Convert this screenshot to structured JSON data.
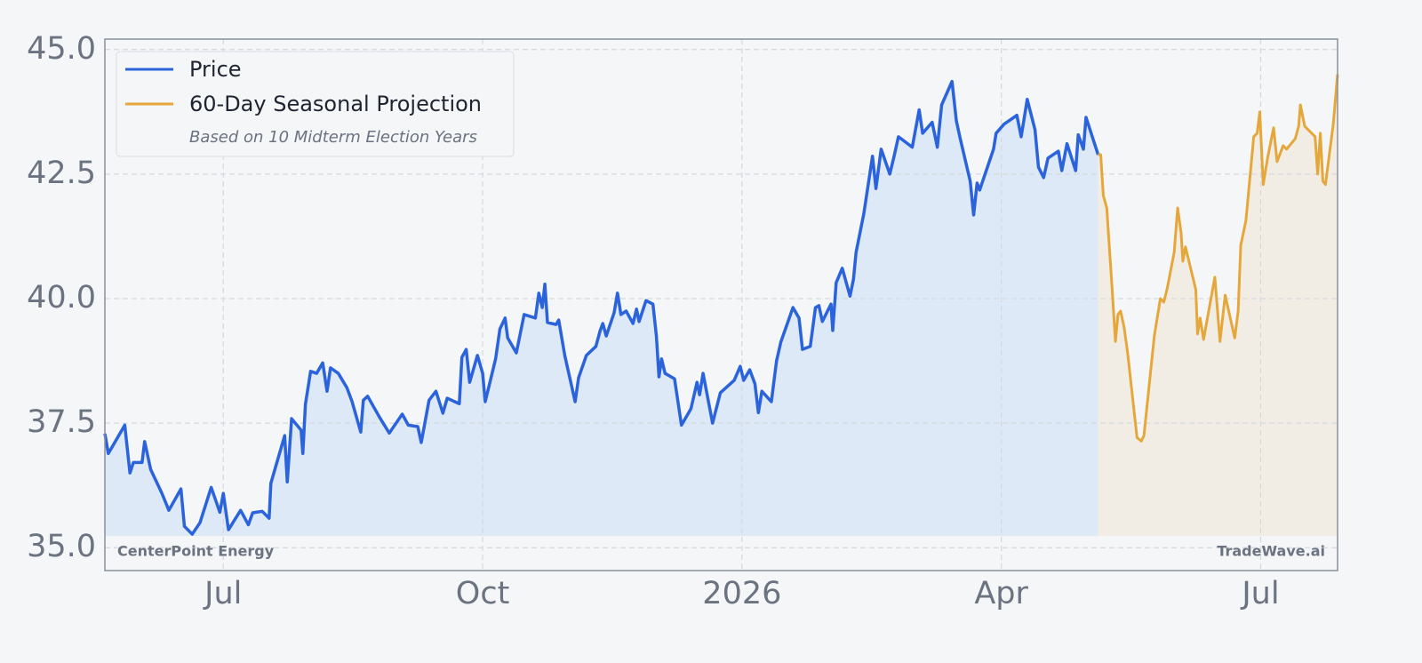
{
  "chart_data": {
    "type": "line",
    "xlim": [
      -1.37,
      12.89
    ],
    "xticks": [
      {
        "value": 0,
        "label": "Jul"
      },
      {
        "value": 3,
        "label": "Oct"
      },
      {
        "value": 6,
        "label": "2026"
      },
      {
        "value": 9,
        "label": "Apr"
      },
      {
        "value": 12,
        "label": "Jul"
      }
    ],
    "ylim": [
      34.54,
      45.21
    ],
    "yticks": [
      {
        "value": 35,
        "label": "35.0"
      },
      37.5,
      {
        "value": 40,
        "label": "40.0"
      },
      42.5,
      {
        "value": 45,
        "label": "45.0"
      }
    ],
    "grid": true,
    "legend": "upper left",
    "legend_note": "Based on 10 Midterm Election Years",
    "annotations": [
      "CenterPoint Energy",
      "TradeWave.ai"
    ],
    "series": [
      {
        "name": "Price",
        "color": "#2b63dc",
        "fill_color": "#dde9f6",
        "x": [
          -1.37,
          -1.33,
          -1.14,
          -1.08,
          -1.04,
          -0.94,
          -0.91,
          -0.84,
          -0.71,
          -0.63,
          -0.49,
          -0.45,
          -0.36,
          -0.27,
          -0.14,
          -0.04,
          0.0,
          0.06,
          0.2,
          0.29,
          0.34,
          0.45,
          0.53,
          0.55,
          0.65,
          0.71,
          0.74,
          0.79,
          0.9,
          0.92,
          0.95,
          1.01,
          1.08,
          1.15,
          1.2,
          1.24,
          1.33,
          1.43,
          1.49,
          1.59,
          1.62,
          1.67,
          1.81,
          1.92,
          2.07,
          2.14,
          2.25,
          2.29,
          2.38,
          2.46,
          2.54,
          2.59,
          2.73,
          2.76,
          2.81,
          2.85,
          2.94,
          3.0,
          3.03,
          3.15,
          3.2,
          3.26,
          3.29,
          3.39,
          3.48,
          3.61,
          3.65,
          3.69,
          3.72,
          3.75,
          3.85,
          3.88,
          3.95,
          4.07,
          4.11,
          4.2,
          4.31,
          4.36,
          4.39,
          4.43,
          4.52,
          4.56,
          4.6,
          4.66,
          4.74,
          4.78,
          4.81,
          4.89,
          4.97,
          5.01,
          5.04,
          5.07,
          5.11,
          5.22,
          5.3,
          5.41,
          5.48,
          5.51,
          5.55,
          5.66,
          5.75,
          5.91,
          5.98,
          6.02,
          6.09,
          6.15,
          6.19,
          6.23,
          6.34,
          6.4,
          6.45,
          6.59,
          6.66,
          6.7,
          6.79,
          6.85,
          6.89,
          6.93,
          7.03,
          7.05,
          7.09,
          7.16,
          7.25,
          7.29,
          7.32,
          7.41,
          7.51,
          7.55,
          7.61,
          7.71,
          7.76,
          7.81,
          7.97,
          8.05,
          8.09,
          8.2,
          8.26,
          8.31,
          8.43,
          8.48,
          8.52,
          8.64,
          8.68,
          8.72,
          8.75,
          8.91,
          8.94,
          9.03,
          9.18,
          9.23,
          9.3,
          9.39,
          9.43,
          9.49,
          9.54,
          9.66,
          9.7,
          9.76,
          9.86,
          9.89,
          9.95,
          9.98,
          10.12
        ],
        "values": [
          37.29,
          36.89,
          37.46,
          36.5,
          36.71,
          36.71,
          37.13,
          36.57,
          36.09,
          35.75,
          36.18,
          35.43,
          35.27,
          35.5,
          36.21,
          35.71,
          36.09,
          35.36,
          35.75,
          35.46,
          35.7,
          35.73,
          35.59,
          36.29,
          36.89,
          37.25,
          36.32,
          37.59,
          37.36,
          36.89,
          37.88,
          38.54,
          38.5,
          38.71,
          38.14,
          38.61,
          38.5,
          38.21,
          37.93,
          37.32,
          37.96,
          38.04,
          37.61,
          37.3,
          37.68,
          37.46,
          37.43,
          37.11,
          37.96,
          38.14,
          37.7,
          38.0,
          37.89,
          38.82,
          38.98,
          38.32,
          38.86,
          38.5,
          37.93,
          38.79,
          39.39,
          39.61,
          39.21,
          38.91,
          39.68,
          39.61,
          40.11,
          39.82,
          40.29,
          39.52,
          39.48,
          39.57,
          38.86,
          37.93,
          38.41,
          38.86,
          39.04,
          39.36,
          39.5,
          39.25,
          39.71,
          40.11,
          39.68,
          39.75,
          39.5,
          39.79,
          39.54,
          39.96,
          39.89,
          39.25,
          38.43,
          38.79,
          38.5,
          38.39,
          37.46,
          37.79,
          38.32,
          38.07,
          38.5,
          37.5,
          38.11,
          38.36,
          38.64,
          38.36,
          38.57,
          38.29,
          37.71,
          38.14,
          37.93,
          38.75,
          39.13,
          39.82,
          39.61,
          38.98,
          39.04,
          39.82,
          39.86,
          39.54,
          39.89,
          39.36,
          40.32,
          40.61,
          40.05,
          40.39,
          40.93,
          41.71,
          42.86,
          42.21,
          43.0,
          42.5,
          42.86,
          43.25,
          43.04,
          43.79,
          43.32,
          43.54,
          43.04,
          43.89,
          44.36,
          43.57,
          43.25,
          42.36,
          41.68,
          42.32,
          42.18,
          43.0,
          43.32,
          43.5,
          43.68,
          43.25,
          44.0,
          43.39,
          42.64,
          42.43,
          42.82,
          42.96,
          42.57,
          43.11,
          42.57,
          43.29,
          43.0,
          43.64,
          42.89
        ]
      },
      {
        "name": "60-Day Seasonal Projection",
        "color": "#e6a73a",
        "fill_color": "#f2ede4",
        "x": [
          10.12,
          10.15,
          10.18,
          10.22,
          10.28,
          10.32,
          10.35,
          10.38,
          10.42,
          10.46,
          10.57,
          10.62,
          10.65,
          10.77,
          10.84,
          10.88,
          10.92,
          11.0,
          11.04,
          11.08,
          11.1,
          11.13,
          11.25,
          11.27,
          11.3,
          11.34,
          11.47,
          11.53,
          11.59,
          11.7,
          11.74,
          11.77,
          11.83,
          11.92,
          11.96,
          11.99,
          12.03,
          12.08,
          12.15,
          12.19,
          12.26,
          12.3,
          12.4,
          12.44,
          12.46,
          12.51,
          12.63,
          12.66,
          12.69,
          12.72,
          12.75,
          12.84,
          12.89
        ],
        "values": [
          42.89,
          42.89,
          42.07,
          41.82,
          40.25,
          39.14,
          39.68,
          39.75,
          39.43,
          38.93,
          37.21,
          37.14,
          37.25,
          39.25,
          40.0,
          39.93,
          40.21,
          40.93,
          41.82,
          41.32,
          40.75,
          41.04,
          40.18,
          39.29,
          39.61,
          39.18,
          40.43,
          39.14,
          40.07,
          39.21,
          39.75,
          41.07,
          41.57,
          43.25,
          43.32,
          43.75,
          42.29,
          42.82,
          43.43,
          42.75,
          43.07,
          43.0,
          43.21,
          43.46,
          43.89,
          43.46,
          43.25,
          42.5,
          43.32,
          42.36,
          42.29,
          43.5,
          44.5
        ]
      }
    ]
  }
}
